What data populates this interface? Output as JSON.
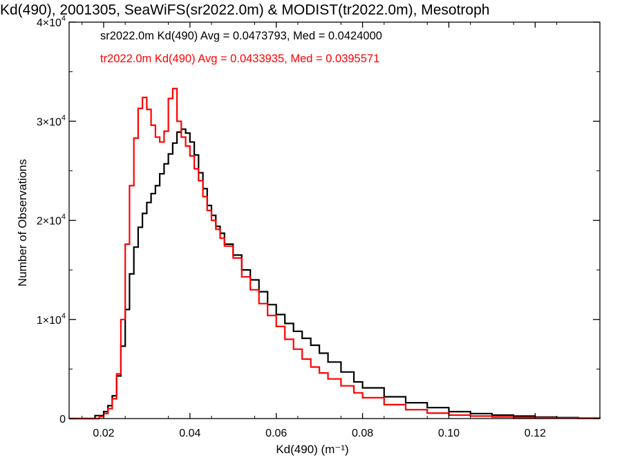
{
  "chart_data": {
    "type": "line",
    "title": "Kd(490), 2001305, SeaWiFS(sr2022.0m) & MODIST(tr2022.0m), Mesotroph",
    "xlabel": "Kd(490) (m⁻¹)",
    "ylabel": "Number of Observations",
    "xlim": [
      0.012,
      0.135
    ],
    "ylim": [
      0,
      40000
    ],
    "x_ticks": [
      "0.02",
      "0.04",
      "0.06",
      "0.08",
      "0.10",
      "0.12"
    ],
    "x_tick_values": [
      0.02,
      0.04,
      0.06,
      0.08,
      0.1,
      0.12
    ],
    "y_ticks": [
      {
        "value": 0,
        "mant": "0",
        "exp": ""
      },
      {
        "value": 10000,
        "mant": "1×10",
        "exp": "4"
      },
      {
        "value": 20000,
        "mant": "2×10",
        "exp": "4"
      },
      {
        "value": 30000,
        "mant": "3×10",
        "exp": "4"
      },
      {
        "value": 40000,
        "mant": "4×10",
        "exp": "4"
      }
    ],
    "grid": false,
    "legend_placement": "top-left",
    "series": [
      {
        "name": "sr2022.0m Kd(490) Avg = 0.0473793, Med = 0.0424000",
        "color": "#000000",
        "step": true,
        "x": [
          0.012,
          0.016,
          0.018,
          0.02,
          0.021,
          0.022,
          0.023,
          0.024,
          0.025,
          0.026,
          0.027,
          0.028,
          0.029,
          0.03,
          0.031,
          0.032,
          0.033,
          0.034,
          0.035,
          0.036,
          0.037,
          0.038,
          0.039,
          0.04,
          0.041,
          0.042,
          0.043,
          0.044,
          0.045,
          0.046,
          0.047,
          0.048,
          0.05,
          0.052,
          0.054,
          0.056,
          0.058,
          0.06,
          0.062,
          0.064,
          0.066,
          0.068,
          0.07,
          0.072,
          0.075,
          0.078,
          0.08,
          0.085,
          0.09,
          0.095,
          0.1,
          0.105,
          0.11,
          0.115,
          0.12,
          0.125,
          0.13,
          0.135
        ],
        "y": [
          0,
          0,
          300,
          700,
          1300,
          2300,
          4300,
          7300,
          11000,
          14600,
          17300,
          19300,
          20700,
          21800,
          22700,
          23500,
          24700,
          25700,
          26700,
          27800,
          28900,
          29200,
          28800,
          27900,
          26600,
          24800,
          23200,
          21500,
          20500,
          19400,
          18700,
          17600,
          16500,
          15000,
          14000,
          12800,
          11500,
          10500,
          9600,
          8800,
          8100,
          7400,
          6600,
          5700,
          4700,
          3700,
          3100,
          2200,
          1600,
          1100,
          700,
          500,
          350,
          250,
          150,
          100,
          50,
          30
        ]
      },
      {
        "name": "tr2022.0m Kd(490) Avg = 0.0433935, Med = 0.0395571",
        "color": "#ff0000",
        "step": true,
        "x": [
          0.012,
          0.017,
          0.019,
          0.02,
          0.021,
          0.022,
          0.023,
          0.024,
          0.025,
          0.026,
          0.027,
          0.028,
          0.029,
          0.03,
          0.031,
          0.032,
          0.033,
          0.034,
          0.035,
          0.036,
          0.037,
          0.038,
          0.039,
          0.04,
          0.041,
          0.042,
          0.043,
          0.044,
          0.045,
          0.046,
          0.047,
          0.048,
          0.05,
          0.052,
          0.054,
          0.056,
          0.058,
          0.06,
          0.062,
          0.064,
          0.066,
          0.068,
          0.07,
          0.072,
          0.075,
          0.078,
          0.08,
          0.085,
          0.09,
          0.095,
          0.1,
          0.105,
          0.11,
          0.115,
          0.12,
          0.125,
          0.13,
          0.135
        ],
        "y": [
          0,
          0,
          200,
          500,
          1000,
          2000,
          4500,
          10000,
          17600,
          23500,
          28300,
          31300,
          32400,
          31200,
          29600,
          28400,
          27900,
          29000,
          32300,
          33300,
          30000,
          28400,
          27500,
          26500,
          25200,
          24000,
          22400,
          21000,
          20000,
          19100,
          18200,
          17400,
          16200,
          14300,
          13000,
          11600,
          10400,
          9300,
          8000,
          7000,
          6000,
          5200,
          4600,
          4000,
          3300,
          2600,
          2100,
          1400,
          900,
          550,
          350,
          250,
          170,
          110,
          80,
          50,
          30,
          20
        ]
      }
    ]
  }
}
